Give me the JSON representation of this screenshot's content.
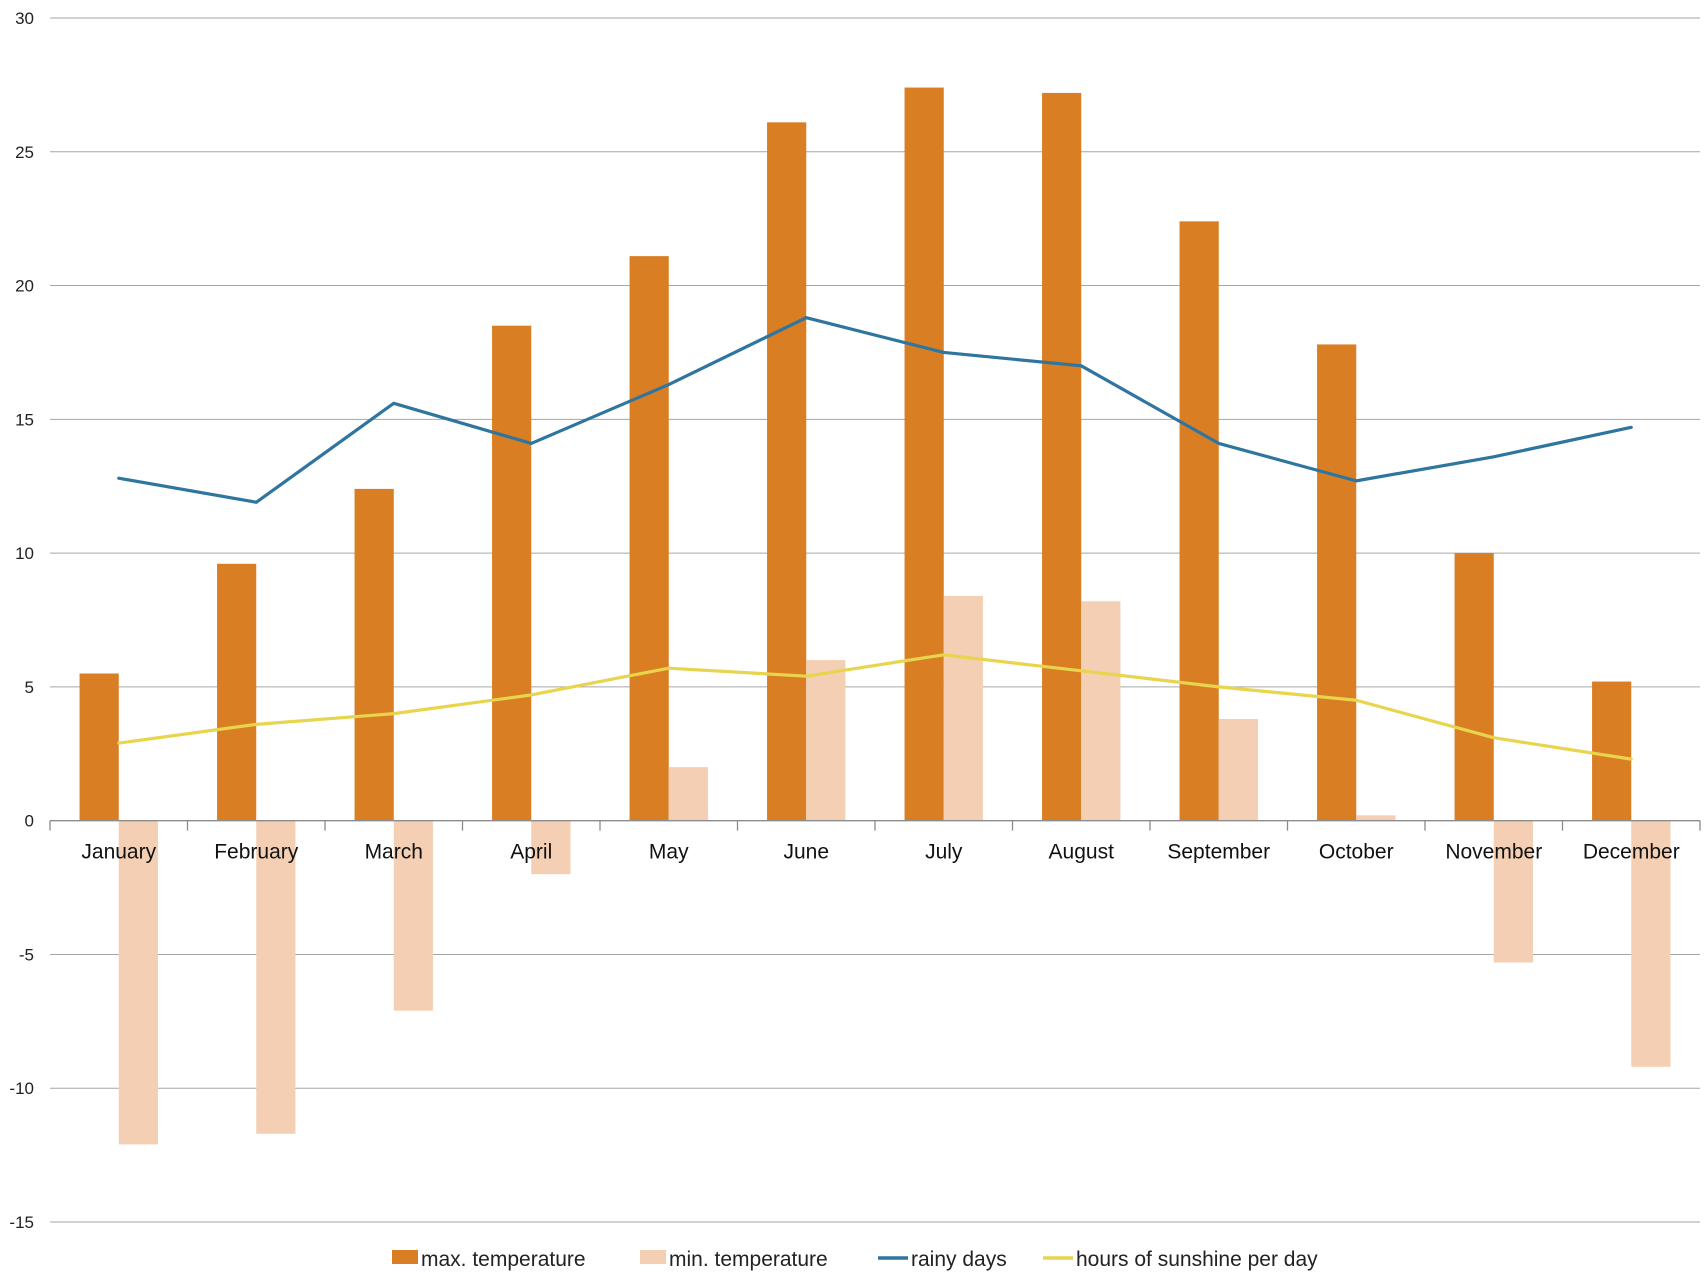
{
  "chart_data": {
    "type": "bar",
    "categories": [
      "January",
      "February",
      "March",
      "April",
      "May",
      "June",
      "July",
      "August",
      "September",
      "October",
      "November",
      "December"
    ],
    "series": [
      {
        "name": "max.  temperature",
        "type": "bar",
        "color": "#d97e22",
        "values": [
          5.5,
          9.6,
          12.4,
          18.5,
          21.1,
          26.1,
          27.4,
          27.2,
          22.4,
          17.8,
          10.0,
          5.2
        ]
      },
      {
        "name": "min. temperature",
        "type": "bar",
        "color": "#f4cfb3",
        "values": [
          -12.1,
          -11.7,
          -7.1,
          -2.0,
          2.0,
          6.0,
          8.4,
          8.2,
          3.8,
          0.2,
          -5.3,
          -9.2
        ]
      },
      {
        "name": "rainy days",
        "type": "line",
        "color": "#2e75a0",
        "values": [
          12.8,
          11.9,
          15.6,
          14.1,
          16.3,
          18.8,
          17.5,
          17.0,
          14.1,
          12.7,
          13.6,
          14.7
        ]
      },
      {
        "name": "hours of sunshine per day",
        "type": "line",
        "color": "#e8d44d",
        "values": [
          2.9,
          3.6,
          4.0,
          4.7,
          5.7,
          5.4,
          6.2,
          5.6,
          5.0,
          4.5,
          3.1,
          2.3
        ]
      }
    ],
    "yticks": [
      30,
      25,
      20,
      15,
      10,
      5,
      0,
      -5,
      -10,
      -15
    ],
    "ylim": [
      -15,
      30
    ],
    "title": "",
    "xlabel": "",
    "ylabel": "",
    "grid": true,
    "legend_position": "bottom"
  }
}
